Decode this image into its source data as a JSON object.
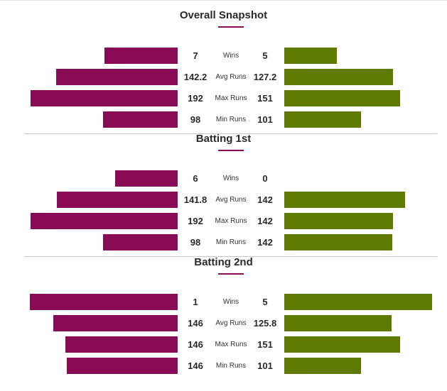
{
  "colors": {
    "team_a": "#8a0b55",
    "team_b": "#5e7a00",
    "accent": "#8a0b55"
  },
  "chart_data": [
    {
      "type": "bar",
      "title": "Overall Snapshot",
      "categories": [
        "Wins",
        "Avg Runs",
        "Max Runs",
        "Min Runs"
      ],
      "series": [
        {
          "values": [
            "7",
            "142.2",
            "192",
            "98"
          ]
        },
        {
          "values": [
            "5",
            "127.2",
            "151",
            "101"
          ]
        }
      ]
    },
    {
      "type": "bar",
      "title": "Batting 1st",
      "categories": [
        "Wins",
        "Avg Runs",
        "Max Runs",
        "Min Runs"
      ],
      "series": [
        {
          "values": [
            "6",
            "141.8",
            "192",
            "98"
          ]
        },
        {
          "values": [
            "0",
            "142",
            "142",
            "142"
          ]
        }
      ]
    },
    {
      "type": "bar",
      "title": "Batting 2nd",
      "categories": [
        "Wins",
        "Avg Runs",
        "Max Runs",
        "Min Runs"
      ],
      "series": [
        {
          "values": [
            "1",
            "146",
            "146",
            "146"
          ]
        },
        {
          "values": [
            "5",
            "125.8",
            "151",
            "101"
          ]
        }
      ]
    }
  ]
}
